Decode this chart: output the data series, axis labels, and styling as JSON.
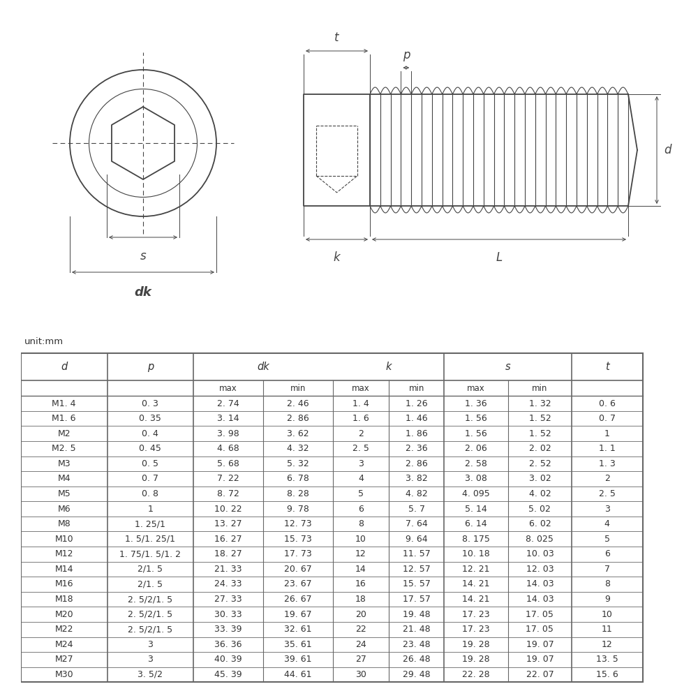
{
  "unit_label": "unit:mm",
  "table_data": [
    [
      "M1. 4",
      "0. 3",
      "2. 74",
      "2. 46",
      "1. 4",
      "1. 26",
      "1. 36",
      "1. 32",
      "0. 6"
    ],
    [
      "M1. 6",
      "0. 35",
      "3. 14",
      "2. 86",
      "1. 6",
      "1. 46",
      "1. 56",
      "1. 52",
      "0. 7"
    ],
    [
      "M2",
      "0. 4",
      "3. 98",
      "3. 62",
      "2",
      "1. 86",
      "1. 56",
      "1. 52",
      "1"
    ],
    [
      "M2. 5",
      "0. 45",
      "4. 68",
      "4. 32",
      "2. 5",
      "2. 36",
      "2. 06",
      "2. 02",
      "1. 1"
    ],
    [
      "M3",
      "0. 5",
      "5. 68",
      "5. 32",
      "3",
      "2. 86",
      "2. 58",
      "2. 52",
      "1. 3"
    ],
    [
      "M4",
      "0. 7",
      "7. 22",
      "6. 78",
      "4",
      "3. 82",
      "3. 08",
      "3. 02",
      "2"
    ],
    [
      "M5",
      "0. 8",
      "8. 72",
      "8. 28",
      "5",
      "4. 82",
      "4. 095",
      "4. 02",
      "2. 5"
    ],
    [
      "M6",
      "1",
      "10. 22",
      "9. 78",
      "6",
      "5. 7",
      "5. 14",
      "5. 02",
      "3"
    ],
    [
      "M8",
      "1. 25/1",
      "13. 27",
      "12. 73",
      "8",
      "7. 64",
      "6. 14",
      "6. 02",
      "4"
    ],
    [
      "M10",
      "1. 5/1. 25/1",
      "16. 27",
      "15. 73",
      "10",
      "9. 64",
      "8. 175",
      "8. 025",
      "5"
    ],
    [
      "M12",
      "1. 75/1. 5/1. 2",
      "18. 27",
      "17. 73",
      "12",
      "11. 57",
      "10. 18",
      "10. 03",
      "6"
    ],
    [
      "M14",
      "2/1. 5",
      "21. 33",
      "20. 67",
      "14",
      "12. 57",
      "12. 21",
      "12. 03",
      "7"
    ],
    [
      "M16",
      "2/1. 5",
      "24. 33",
      "23. 67",
      "16",
      "15. 57",
      "14. 21",
      "14. 03",
      "8"
    ],
    [
      "M18",
      "2. 5/2/1. 5",
      "27. 33",
      "26. 67",
      "18",
      "17. 57",
      "14. 21",
      "14. 03",
      "9"
    ],
    [
      "M20",
      "2. 5/2/1. 5",
      "30. 33",
      "19. 67",
      "20",
      "19. 48",
      "17. 23",
      "17. 05",
      "10"
    ],
    [
      "M22",
      "2. 5/2/1. 5",
      "33. 39",
      "32. 61",
      "22",
      "21. 48",
      "17. 23",
      "17. 05",
      "11"
    ],
    [
      "M24",
      "3",
      "36. 36",
      "35. 61",
      "24",
      "23. 48",
      "19. 28",
      "19. 07",
      "12"
    ],
    [
      "M27",
      "3",
      "40. 39",
      "39. 61",
      "27",
      "26. 48",
      "19. 28",
      "19. 07",
      "13. 5"
    ],
    [
      "M30",
      "3. 5/2",
      "45. 39",
      "44. 61",
      "30",
      "29. 48",
      "22. 28",
      "22. 07",
      "15. 6"
    ]
  ],
  "background_color": "#ffffff",
  "text_color": "#333333",
  "line_color": "#444444",
  "table_border_color": "#666666",
  "font_size_table": 9.0,
  "font_size_header": 10.5,
  "font_size_label": 12
}
